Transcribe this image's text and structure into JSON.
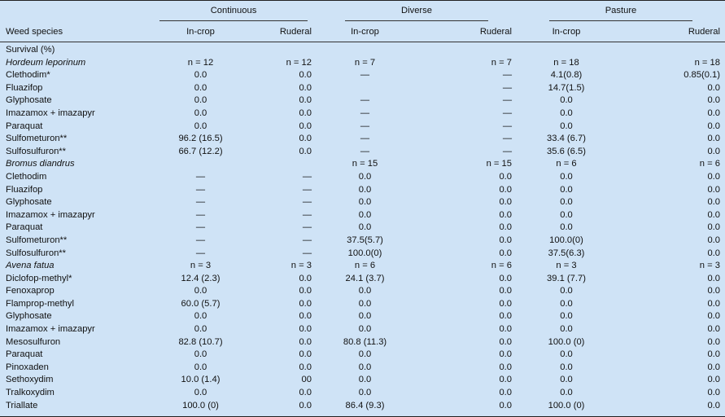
{
  "header": {
    "groups": [
      "Continuous",
      "Diverse",
      "Pasture"
    ],
    "row_label": "Weed species",
    "subcolumns": [
      "In-crop",
      "Ruderal",
      "In-crop",
      "Ruderal",
      "In-crop",
      "Ruderal"
    ]
  },
  "rows": [
    {
      "label": "Survival (%)",
      "type": "section",
      "values": [
        "",
        "",
        "",
        "",
        "",
        ""
      ]
    },
    {
      "label": "Hordeum leporinum",
      "type": "species",
      "values": [
        "n = 12",
        "n = 12",
        "n = 7",
        "n = 7",
        "n = 18",
        "n = 18"
      ]
    },
    {
      "label": "Clethodim*",
      "type": "data",
      "values": [
        "0.0",
        "0.0",
        "—",
        "—",
        "4.1(0.8)",
        "0.85(0.1)"
      ]
    },
    {
      "label": "Fluazifop",
      "type": "data",
      "values": [
        "0.0",
        "0.0",
        "",
        "—",
        "14.7(1.5)",
        "0.0"
      ]
    },
    {
      "label": "Glyphosate",
      "type": "data",
      "values": [
        "0.0",
        "0.0",
        "—",
        "—",
        "0.0",
        "0.0"
      ]
    },
    {
      "label": "Imazamox + imazapyr",
      "type": "data",
      "values": [
        "0.0",
        "0.0",
        "—",
        "—",
        "0.0",
        "0.0"
      ]
    },
    {
      "label": "Paraquat",
      "type": "data",
      "values": [
        "0.0",
        "0.0",
        "—",
        "—",
        "0.0",
        "0.0"
      ]
    },
    {
      "label": "Sulfometuron**",
      "type": "data",
      "values": [
        "96.2 (16.5)",
        "0.0",
        "—",
        "—",
        "33.4 (6.7)",
        "0.0"
      ]
    },
    {
      "label": "Sulfosulfuron**",
      "type": "data",
      "values": [
        "66.7 (12.2)",
        "0.0",
        "—",
        "—",
        "35.6 (6.5)",
        "0.0"
      ]
    },
    {
      "label": "Bromus diandrus",
      "type": "species",
      "values": [
        "",
        "",
        "n = 15",
        "n = 15",
        "n = 6",
        "n = 6"
      ]
    },
    {
      "label": "Clethodim",
      "type": "data",
      "values": [
        "—",
        "—",
        "0.0",
        "0.0",
        "0.0",
        "0.0"
      ]
    },
    {
      "label": "Fluazifop",
      "type": "data",
      "values": [
        "—",
        "—",
        "0.0",
        "0.0",
        "0.0",
        "0.0"
      ]
    },
    {
      "label": "Glyphosate",
      "type": "data",
      "values": [
        "—",
        "—",
        "0.0",
        "0.0",
        "0.0",
        "0.0"
      ]
    },
    {
      "label": "Imazamox + imazapyr",
      "type": "data",
      "values": [
        "—",
        "—",
        "0.0",
        "0.0",
        "0.0",
        "0.0"
      ]
    },
    {
      "label": "Paraquat",
      "type": "data",
      "values": [
        "—",
        "—",
        "0.0",
        "0.0",
        "0.0",
        "0.0"
      ]
    },
    {
      "label": "Sulfometuron**",
      "type": "data",
      "values": [
        "—",
        "—",
        "37.5(5.7)",
        "0.0",
        "100.0(0)",
        "0.0"
      ]
    },
    {
      "label": "Sulfosulfuron**",
      "type": "data",
      "values": [
        "—",
        "—",
        "100.0(0)",
        "0.0",
        "37.5(6.3)",
        "0.0"
      ]
    },
    {
      "label": "Avena fatua",
      "type": "species",
      "values": [
        "n = 3",
        "n = 3",
        "n = 6",
        "n = 6",
        "n = 3",
        "n = 3"
      ]
    },
    {
      "label": "Diclofop-methyl*",
      "type": "data",
      "values": [
        "12.4 (2.3)",
        "0.0",
        "24.1 (3.7)",
        "0.0",
        "39.1 (7.7)",
        "0.0"
      ]
    },
    {
      "label": "Fenoxaprop",
      "type": "data",
      "values": [
        "0.0",
        "0.0",
        "0.0",
        "0.0",
        "0.0",
        "0.0"
      ]
    },
    {
      "label": "Flamprop-methyl",
      "type": "data",
      "values": [
        "60.0 (5.7)",
        "0.0",
        "0.0",
        "0.0",
        "0.0",
        "0.0"
      ]
    },
    {
      "label": "Glyphosate",
      "type": "data",
      "values": [
        "0.0",
        "0.0",
        "0.0",
        "0.0",
        "0.0",
        "0.0"
      ]
    },
    {
      "label": "Imazamox + imazapyr",
      "type": "data",
      "values": [
        "0.0",
        "0.0",
        "0.0",
        "0.0",
        "0.0",
        "0.0"
      ]
    },
    {
      "label": "Mesosulfuron",
      "type": "data",
      "values": [
        "82.8 (10.7)",
        "0.0",
        "80.8 (11.3)",
        "0.0",
        "100.0 (0)",
        "0.0"
      ]
    },
    {
      "label": "Paraquat",
      "type": "data",
      "values": [
        "0.0",
        "0.0",
        "0.0",
        "0.0",
        "0.0",
        "0.0"
      ]
    },
    {
      "label": "Pinoxaden",
      "type": "data",
      "values": [
        "0.0",
        "0.0",
        "0.0",
        "0.0",
        "0.0",
        "0.0"
      ]
    },
    {
      "label": "Sethoxydim",
      "type": "data",
      "values": [
        "10.0 (1.4)",
        "00",
        "0.0",
        "0.0",
        "0.0",
        "0.0"
      ]
    },
    {
      "label": "Tralkoxydim",
      "type": "data",
      "values": [
        "0.0",
        "0.0",
        "0.0",
        "0.0",
        "0.0",
        "0.0"
      ]
    },
    {
      "label": "Triallate",
      "type": "data",
      "values": [
        "100.0 (0)",
        "0.0",
        "86.4 (9.3)",
        "0.0",
        "100.0 (0)",
        "0.0"
      ]
    }
  ]
}
